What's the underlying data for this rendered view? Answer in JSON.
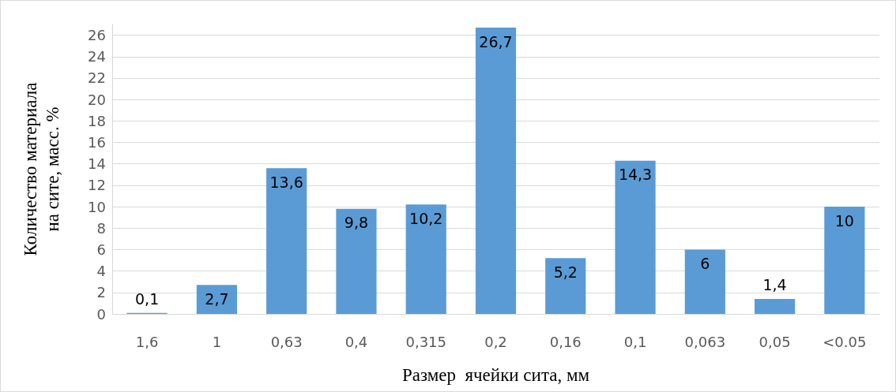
{
  "chart_data": {
    "type": "bar",
    "xlabel": "Размер  ячейки сита, мм",
    "ylabel": "Количество материала на сите, масс. %",
    "categories": [
      "1,6",
      "1",
      "0,63",
      "0,4",
      "0,315",
      "0,2",
      "0,16",
      "0,1",
      "0,063",
      "0,05",
      "<0.05"
    ],
    "values": [
      0.1,
      2.7,
      13.6,
      9.8,
      10.2,
      26.7,
      5.2,
      14.3,
      6,
      1.4,
      10
    ],
    "value_labels": [
      "0,1",
      "2,7",
      "13,6",
      "9,8",
      "10,2",
      "26,7",
      "5,2",
      "14,3",
      "6",
      "1,4",
      "10"
    ],
    "color": "#5b9bd5",
    "ylim": [
      0,
      27
    ],
    "yticks": [
      0,
      2,
      4,
      6,
      8,
      10,
      12,
      14,
      16,
      18,
      20,
      22,
      24,
      26
    ],
    "grid": "y"
  }
}
